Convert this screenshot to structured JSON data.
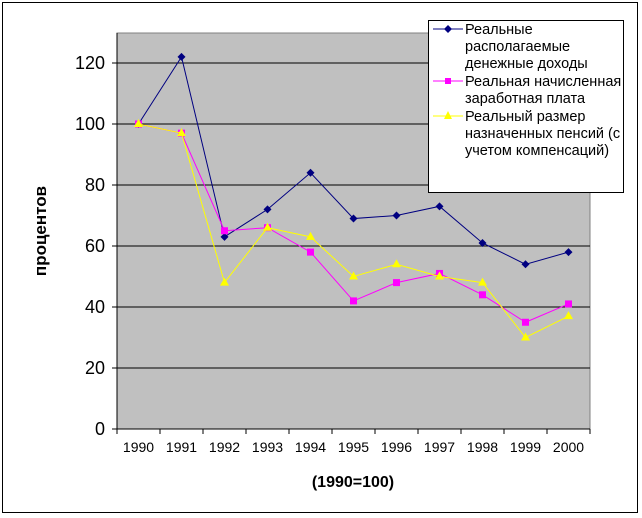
{
  "chart_data": {
    "type": "line",
    "categories": [
      "1990",
      "1991",
      "1992",
      "1993",
      "1994",
      "1995",
      "1996",
      "1997",
      "1998",
      "1999",
      "2000"
    ],
    "xlabel": "(1990=100)",
    "ylabel": "процентов",
    "ylim": [
      0,
      120
    ],
    "yticks": [
      0,
      20,
      40,
      60,
      80,
      100,
      120
    ],
    "grid": true,
    "legend": "top-right",
    "plot_background": "#C0C0C0",
    "series": [
      {
        "name": "Реальные располагаемые денежные доходы",
        "color": "#000080",
        "marker": "diamond",
        "values": [
          100,
          122,
          63,
          72,
          84,
          69,
          70,
          73,
          61,
          54,
          58
        ]
      },
      {
        "name": "Реальная начисленная заработная плата",
        "color": "#FF00FF",
        "marker": "square",
        "values": [
          100,
          97,
          65,
          66,
          58,
          42,
          48,
          51,
          44,
          35,
          41
        ]
      },
      {
        "name": "Реальный размер назначенных пенсий (с учетом компенсаций)",
        "color": "#FFFF00",
        "marker": "triangle",
        "values": [
          100,
          97,
          48,
          66,
          63,
          50,
          54,
          50,
          48,
          30,
          37
        ]
      }
    ]
  }
}
